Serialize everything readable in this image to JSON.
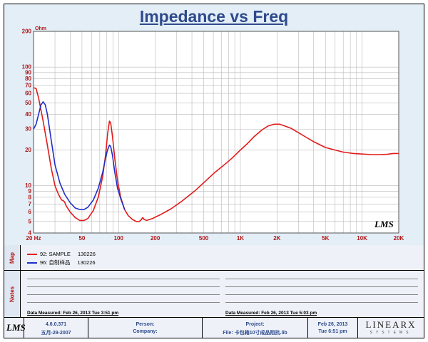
{
  "chart_data": {
    "type": "line",
    "title": "Impedance vs Freq",
    "ylabel": "Ohm",
    "x_scale": "log",
    "y_scale": "log",
    "xlim": [
      20,
      20000
    ],
    "ylim": [
      4,
      200
    ],
    "x_ticks": [
      20,
      50,
      100,
      200,
      500,
      1000,
      2000,
      5000,
      10000,
      20000
    ],
    "x_tick_labels": [
      "20 Hz",
      "50",
      "100",
      "200",
      "500",
      "1K",
      "2K",
      "5K",
      "10K",
      "20K"
    ],
    "y_ticks": [
      4,
      5,
      6,
      7,
      8,
      9,
      10,
      20,
      30,
      40,
      50,
      60,
      70,
      80,
      90,
      100,
      200
    ],
    "y_tick_labels": [
      "4",
      "5",
      "6",
      "7",
      "8",
      "9",
      "10",
      "20",
      "30",
      "40",
      "50",
      "60",
      "70",
      "80",
      "90",
      "100",
      "200"
    ],
    "grid": true,
    "legend_position": "bottom panel",
    "series": [
      {
        "name": "92: SAMPLE",
        "color": "#e31b1b",
        "points": [
          [
            20,
            67
          ],
          [
            21,
            66
          ],
          [
            22,
            55
          ],
          [
            24,
            35
          ],
          [
            26,
            22
          ],
          [
            28,
            14
          ],
          [
            30,
            10
          ],
          [
            32,
            8.5
          ],
          [
            34,
            7.6
          ],
          [
            35,
            7.5
          ],
          [
            36,
            7.3
          ],
          [
            37,
            6.8
          ],
          [
            40,
            6.0
          ],
          [
            44,
            5.4
          ],
          [
            48,
            5.1
          ],
          [
            52,
            5.1
          ],
          [
            56,
            5.3
          ],
          [
            62,
            6.2
          ],
          [
            68,
            8.0
          ],
          [
            74,
            12
          ],
          [
            78,
            18
          ],
          [
            81,
            27
          ],
          [
            84,
            35
          ],
          [
            86,
            34
          ],
          [
            89,
            26
          ],
          [
            93,
            17
          ],
          [
            98,
            11
          ],
          [
            104,
            8
          ],
          [
            112,
            6.3
          ],
          [
            120,
            5.6
          ],
          [
            130,
            5.2
          ],
          [
            140,
            5.0
          ],
          [
            148,
            5.0
          ],
          [
            154,
            5.2
          ],
          [
            158,
            5.4
          ],
          [
            162,
            5.2
          ],
          [
            170,
            5.1
          ],
          [
            190,
            5.3
          ],
          [
            220,
            5.7
          ],
          [
            270,
            6.4
          ],
          [
            330,
            7.4
          ],
          [
            420,
            9.0
          ],
          [
            520,
            11.0
          ],
          [
            620,
            13.0
          ],
          [
            720,
            14.7
          ],
          [
            850,
            17.0
          ],
          [
            1000,
            20.0
          ],
          [
            1150,
            22.8
          ],
          [
            1300,
            26.0
          ],
          [
            1500,
            29.5
          ],
          [
            1700,
            32.0
          ],
          [
            1900,
            33.0
          ],
          [
            2100,
            33.0
          ],
          [
            2300,
            32.0
          ],
          [
            2600,
            30.5
          ],
          [
            3000,
            28.0
          ],
          [
            3500,
            25.5
          ],
          [
            4000,
            23.5
          ],
          [
            5000,
            21.0
          ],
          [
            6000,
            20.0
          ],
          [
            7000,
            19.2
          ],
          [
            8500,
            18.7
          ],
          [
            10000,
            18.5
          ],
          [
            12000,
            18.3
          ],
          [
            14000,
            18.3
          ],
          [
            16000,
            18.4
          ],
          [
            18000,
            18.7
          ],
          [
            20000,
            18.7
          ]
        ]
      },
      {
        "name": "96: 自制样品",
        "color": "#1f2fc8",
        "points": [
          [
            20,
            30
          ],
          [
            21,
            33
          ],
          [
            22,
            40
          ],
          [
            23,
            48
          ],
          [
            24,
            51
          ],
          [
            25,
            48
          ],
          [
            26,
            40
          ],
          [
            28,
            24
          ],
          [
            30,
            15
          ],
          [
            33,
            10.5
          ],
          [
            36,
            8.5
          ],
          [
            40,
            7.2
          ],
          [
            44,
            6.5
          ],
          [
            48,
            6.3
          ],
          [
            52,
            6.3
          ],
          [
            56,
            6.6
          ],
          [
            62,
            7.6
          ],
          [
            68,
            9.5
          ],
          [
            74,
            13
          ],
          [
            78,
            17
          ],
          [
            81,
            20
          ],
          [
            84,
            22
          ],
          [
            86,
            21.5
          ],
          [
            89,
            18
          ],
          [
            93,
            13
          ],
          [
            98,
            9.5
          ],
          [
            104,
            7.8
          ],
          [
            112,
            6.3
          ]
        ]
      }
    ]
  },
  "legend": {
    "entries": [
      {
        "name": "92: SAMPLE",
        "date": "130226",
        "color": "#e31b1b"
      },
      {
        "name": "96: 自制样品",
        "date": "130226",
        "color": "#1f2fc8"
      }
    ]
  },
  "panels": {
    "map_label": "Map",
    "notes_label": "Notes",
    "measured_left": "Data Measured: Feb 26, 2013  Tue  3:51 pm",
    "measured_right": "Data Measured: Feb 26, 2013  Tue  5:03 pm"
  },
  "footer": {
    "logo": "LMS",
    "version": "4.6.0.371",
    "build_date": "五月-29-2007",
    "person_label": "Person:",
    "company_label": "Company:",
    "project_label": "Project:",
    "file_label": "File: 卡包箱10寸成品阻抗.lib",
    "date": "Feb 26, 2013",
    "time": "Tue  6:51 pm",
    "brand_big": "LINEARX",
    "brand_small": "SYSTEMS"
  },
  "plot_watermark": "LMS"
}
